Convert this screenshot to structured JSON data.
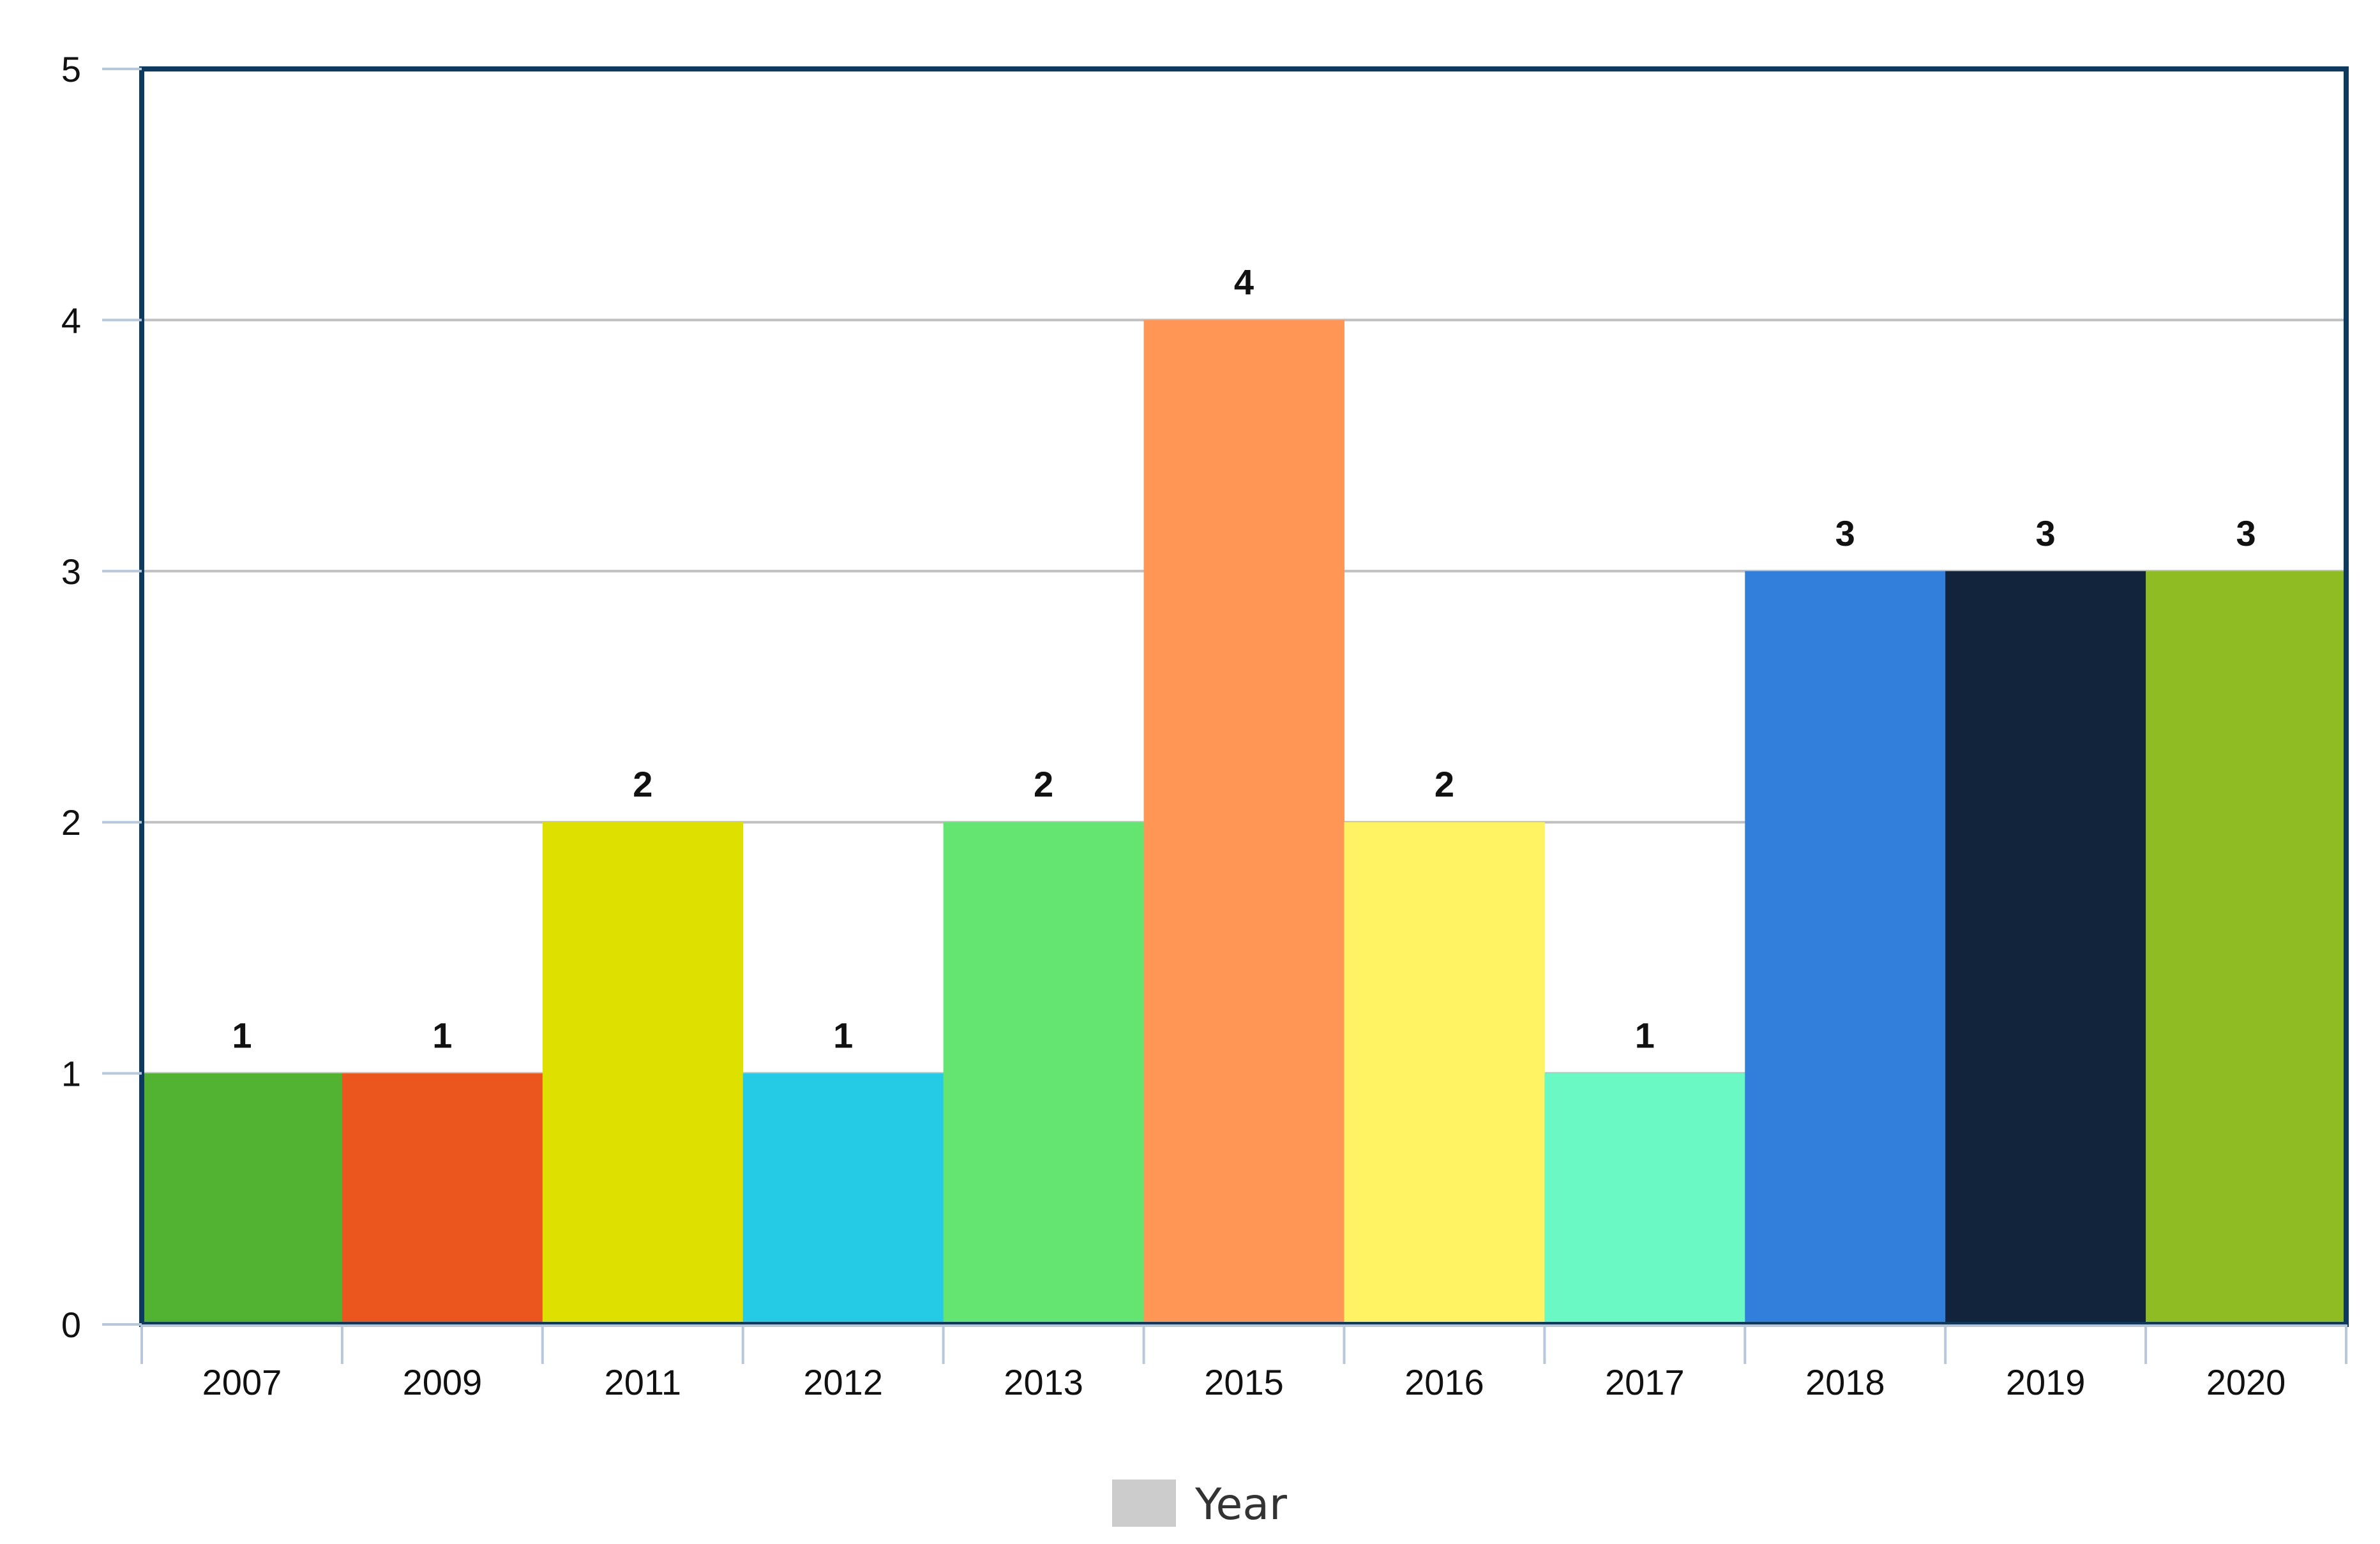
{
  "chart_data": {
    "type": "bar",
    "categories": [
      "2007",
      "2009",
      "2011",
      "2012",
      "2013",
      "2015",
      "2016",
      "2017",
      "2018",
      "2019",
      "2020"
    ],
    "series": [
      {
        "name": "Year",
        "values": [
          1,
          1,
          2,
          1,
          2,
          4,
          2,
          1,
          3,
          3,
          3
        ]
      }
    ],
    "bar_colors": [
      "#52b232",
      "#eb561e",
      "#dee000",
      "#25cbe4",
      "#64e572",
      "#ff9655",
      "#fff263",
      "#6af9c4",
      "#317fdb",
      "#12243b",
      "#8fbc22"
    ],
    "data_labels": [
      "1",
      "1",
      "2",
      "1",
      "2",
      "4",
      "2",
      "1",
      "3",
      "3",
      "3"
    ],
    "y_ticks": [
      "0",
      "1",
      "2",
      "3",
      "4",
      "5"
    ],
    "ylim": [
      0,
      5
    ],
    "title": "",
    "xlabel": "",
    "ylabel": "",
    "grid": true,
    "legend": {
      "position": "bottom-center",
      "label": "Year",
      "swatch_color": "#cccccc"
    },
    "colors": {
      "frame": "#0f3a5f",
      "grid": "#c0c0c0",
      "axis": "#b8c8dc"
    }
  }
}
